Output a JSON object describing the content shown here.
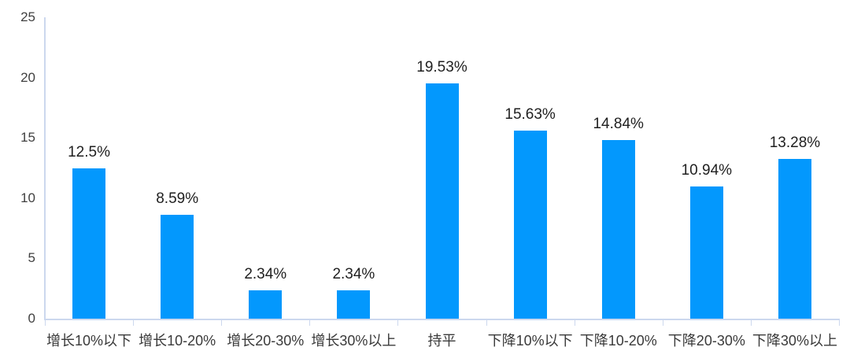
{
  "chart": {
    "bar_color": "#0398fd",
    "axis_color": "#ccd8ee",
    "value_label_color": "#1f1f1f",
    "category_label_color": "#3a3a3a",
    "tick_label_color": "#404040",
    "background_color": "#ffffff"
  },
  "chart_data": {
    "type": "bar",
    "title": "",
    "xlabel": "",
    "ylabel": "",
    "categories": [
      "增长10%以下",
      "增长10-20%",
      "增长20-30%",
      "增长30%以上",
      "持平",
      "下降10%以下",
      "下降10-20%",
      "下降20-30%",
      "下降30%以上"
    ],
    "values": [
      12.5,
      8.59,
      2.34,
      2.34,
      19.53,
      15.63,
      14.84,
      10.94,
      13.28
    ],
    "data_labels": [
      "12.5%",
      "8.59%",
      "2.34%",
      "2.34%",
      "19.53%",
      "15.63%",
      "14.84%",
      "10.94%",
      "13.28%"
    ],
    "yticks": [
      0,
      5,
      10,
      15,
      20,
      25
    ],
    "ylim": [
      0,
      25
    ],
    "grid": false,
    "legend": false
  }
}
